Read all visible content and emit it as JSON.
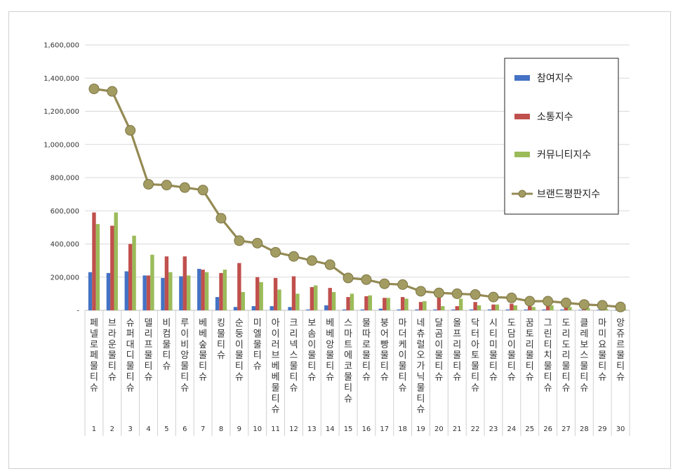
{
  "chart_data": {
    "type": "bar",
    "title": "",
    "xlabel": "",
    "ylabel": "",
    "ylim": [
      0,
      1600000
    ],
    "yticks": [
      "1,600,000",
      "1,400,000",
      "1,200,000",
      "1,000,000",
      "800,000",
      "600,000",
      "400,000",
      "200,000",
      "-"
    ],
    "grid": true,
    "legend_position": "top-right",
    "categories": [
      "페넬로페물티슈",
      "브라운물티슈",
      "슈퍼대디물티슈",
      "델리프물티슈",
      "비컴물티슈",
      "루이비앙물티슈",
      "베베숲물티슈",
      "킹물티슈",
      "순둥이물티슈",
      "미엘물티슈",
      "아이러브베베물티슈",
      "크리넥스물티슈",
      "보솜이물티슈",
      "베베앙물티슈",
      "스마트에코물티슈",
      "물따로물티슈",
      "붕어빵물티슈",
      "마더케이물티슈",
      "네츄럴오가닉물티슈",
      "달곰이물티슈",
      "올프리물티슈",
      "닥터아토물티슈",
      "시티미물티슈",
      "도담이물티슈",
      "꿈토리물티슈",
      "그린티치물티슈",
      "도리도리물티슈",
      "클레보스물티슈",
      "마미요물티슈",
      "앙쥬르물티슈"
    ],
    "ranks": [
      "1",
      "2",
      "3",
      "4",
      "5",
      "6",
      "7",
      "8",
      "9",
      "10",
      "11",
      "12",
      "13",
      "14",
      "15",
      "16",
      "17",
      "18",
      "19",
      "20",
      "21",
      "22",
      "23",
      "24",
      "25",
      "26",
      "27",
      "28",
      "29",
      "30"
    ],
    "series": [
      {
        "name": "참여지수",
        "type": "bar",
        "color": "#4472c4",
        "values": [
          230000,
          225000,
          235000,
          210000,
          195000,
          205000,
          250000,
          80000,
          20000,
          25000,
          25000,
          20000,
          5000,
          30000,
          5000,
          5000,
          10000,
          5000,
          5000,
          5000,
          5000,
          5000,
          5000,
          5000,
          5000,
          5000,
          5000,
          3000,
          3000,
          3000
        ]
      },
      {
        "name": "소통지수",
        "type": "bar",
        "color": "#c0504d",
        "values": [
          590000,
          510000,
          400000,
          210000,
          325000,
          325000,
          245000,
          225000,
          285000,
          200000,
          195000,
          205000,
          140000,
          135000,
          80000,
          85000,
          75000,
          80000,
          50000,
          75000,
          25000,
          50000,
          35000,
          40000,
          30000,
          25000,
          20000,
          10000,
          8000,
          5000
        ]
      },
      {
        "name": "커뮤니티지수",
        "type": "bar",
        "color": "#9bbb59",
        "values": [
          520000,
          590000,
          450000,
          335000,
          230000,
          210000,
          230000,
          245000,
          110000,
          170000,
          125000,
          100000,
          150000,
          110000,
          100000,
          90000,
          75000,
          70000,
          55000,
          25000,
          70000,
          30000,
          35000,
          30000,
          20000,
          30000,
          20000,
          15000,
          10000,
          8000
        ]
      },
      {
        "name": "브랜드평판지수",
        "type": "line",
        "color": "#948a54",
        "values": [
          1335000,
          1320000,
          1085000,
          760000,
          755000,
          740000,
          725000,
          555000,
          420000,
          405000,
          350000,
          325000,
          300000,
          275000,
          195000,
          185000,
          160000,
          155000,
          115000,
          105000,
          100000,
          95000,
          80000,
          75000,
          55000,
          55000,
          45000,
          35000,
          30000,
          20000
        ]
      }
    ]
  }
}
